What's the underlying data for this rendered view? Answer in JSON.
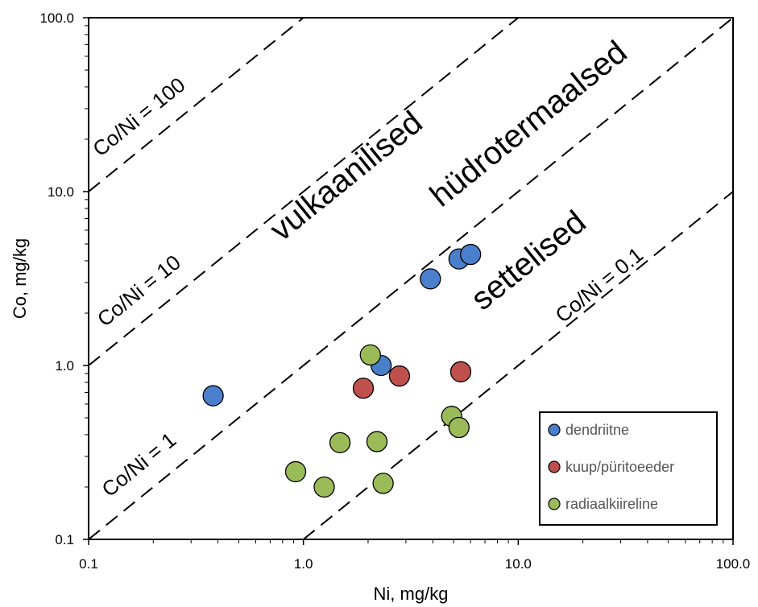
{
  "chart_data": {
    "type": "scatter",
    "x_scale": "log",
    "y_scale": "log",
    "xlabel": "Ni, mg/kg",
    "ylabel": "Co, mg/kg",
    "xlim": [
      0.1,
      100.0
    ],
    "ylim": [
      0.1,
      100.0
    ],
    "x_ticks": [
      {
        "value": 0.1,
        "label": "0.1"
      },
      {
        "value": 1.0,
        "label": "1.0"
      },
      {
        "value": 10.0,
        "label": "10.0"
      },
      {
        "value": 100.0,
        "label": "100.0"
      }
    ],
    "y_ticks": [
      {
        "value": 0.1,
        "label": "0.1"
      },
      {
        "value": 1.0,
        "label": "1.0"
      },
      {
        "value": 10.0,
        "label": "10.0"
      },
      {
        "value": 100.0,
        "label": "100.0"
      }
    ],
    "grid": false,
    "legend_position": "bottom-right",
    "reference_lines": [
      {
        "ratio": 100,
        "label": "Co/Ni = 100",
        "label_at": {
          "x": 0.18,
          "y": 25
        }
      },
      {
        "ratio": 10,
        "label": "Co/Ni = 10",
        "label_at": {
          "x": 0.18,
          "y": 2.5
        }
      },
      {
        "ratio": 1,
        "label": "Co/Ni = 1",
        "label_at": {
          "x": 0.18,
          "y": 0.25
        }
      },
      {
        "ratio": 0.1,
        "label": "Co/Ni = 0.1",
        "label_at": {
          "x": 25,
          "y": 2.7
        }
      }
    ],
    "regions": [
      {
        "label": "vulkaanilised",
        "label_at": {
          "x": 1.7,
          "y": 11
        }
      },
      {
        "label": "hüdrotermaalsed",
        "label_at": {
          "x": 12,
          "y": 22
        }
      },
      {
        "label": "settelised",
        "label_at": {
          "x": 12,
          "y": 3.6
        }
      }
    ],
    "series": [
      {
        "name": "dendriitne",
        "color": "#4a7fcc",
        "points": [
          [
            0.38,
            0.67
          ],
          [
            2.3,
            1.0
          ],
          [
            3.9,
            3.15
          ],
          [
            5.3,
            4.1
          ],
          [
            6.0,
            4.35
          ]
        ]
      },
      {
        "name": "kuup/püritoeeder",
        "color": "#c0504d",
        "points": [
          [
            1.9,
            0.74
          ],
          [
            2.8,
            0.87
          ],
          [
            5.4,
            0.92
          ]
        ]
      },
      {
        "name": "radiaalkiireline",
        "color": "#9bbb59",
        "points": [
          [
            0.92,
            0.245
          ],
          [
            1.25,
            0.2
          ],
          [
            1.48,
            0.36
          ],
          [
            2.05,
            1.15
          ],
          [
            2.2,
            0.365
          ],
          [
            2.35,
            0.21
          ],
          [
            4.9,
            0.51
          ],
          [
            5.3,
            0.44
          ]
        ]
      }
    ]
  }
}
